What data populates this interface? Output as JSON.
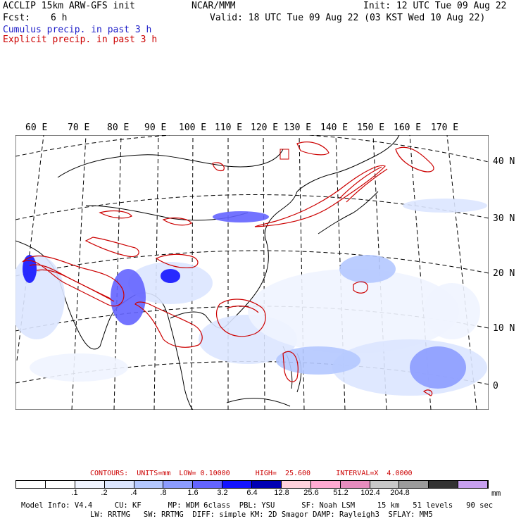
{
  "header": {
    "model": "ACCLIP 15km ARW-GFS init",
    "center": "NCAR/MMM",
    "init": "Init: 12 UTC Tue 09 Aug 22",
    "fcst_label": "Fcst:",
    "fcst_value": "6 h",
    "valid": "Valid: 18 UTC Tue 09 Aug 22 (03 KST Wed 10 Aug 22)",
    "legend_cumulus": "Cumulus precip. in past 3 h",
    "legend_explicit": "Explicit precip. in past 3 h",
    "cumulus_color": "#1e1ec8",
    "explicit_color": "#cc0000"
  },
  "map": {
    "lon_labels": [
      "60 E",
      "70 E",
      "80 E",
      "90 E",
      "100 E",
      "110 E",
      "120 E",
      "130 E",
      "140 E",
      "150 E",
      "160 E",
      "170 E"
    ],
    "lat_labels": [
      "40 N",
      "30 N",
      "20 N",
      "10 N",
      "0"
    ]
  },
  "contours": {
    "text": "CONTOURS:  UNITS=mm  LOW= 0.10000      HIGH=  25.600      INTERVAL=X  4.0000"
  },
  "colorbar": {
    "colors": [
      "#ffffff",
      "#ffffff",
      "#f0f4ff",
      "#dce6ff",
      "#b4c8ff",
      "#8c9cff",
      "#6464ff",
      "#1414ff",
      "#0000b4",
      "#ffd2dc",
      "#ffaad2",
      "#e68cbe",
      "#c8c8c8",
      "#9b9b9b",
      "#323232",
      "#c8a0f0"
    ],
    "ticks": [
      ".1",
      ".2",
      ".4",
      ".8",
      "1.6",
      "3.2",
      "6.4",
      "12.8",
      "25.6",
      "51.2",
      "102.4",
      "204.8"
    ],
    "units": "mm"
  },
  "model_info": {
    "line1": "Model Info: V4.4     CU: KF      MP: WDM 6class  PBL: YSU      SF: Noah LSM     15 km   51 levels   90 sec",
    "line2": "LW: RRTMG   SW: RRTMG  DIFF: simple KM: 2D Smagor DAMP: Rayleigh3  SFLAY: MM5"
  }
}
